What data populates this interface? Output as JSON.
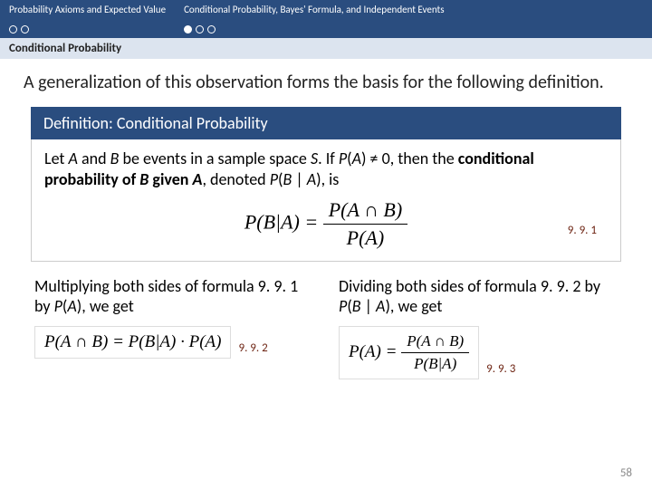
{
  "header": {
    "section1": "Probability Axioms and Expected Value",
    "section2": "Conditional Probability, Bayes' Formula,  and Independent Events"
  },
  "subheader": "Conditional Probability",
  "intro": "A generalization of this observation forms the basis for the following definition.",
  "def_title": "Definition: Conditional Probability",
  "def_text_1": "Let ",
  "def_A": "A",
  "def_and": " and ",
  "def_B": "B",
  "def_text_2": " be events in a sample space ",
  "def_S": "S",
  "def_text_3": ". If ",
  "def_PA": "P",
  "def_text_4": "(",
  "def_A2": "A",
  "def_text_5": ") ≠ 0, then the ",
  "def_bold": "conditional probability of ",
  "def_B2": "B",
  "def_bold2": " given ",
  "def_A3": "A",
  "def_text_6": ", denoted  ",
  "def_PBA": "P",
  "def_text_7": "(",
  "def_B3": "B",
  "def_bar": " | ",
  "def_A4": "A",
  "def_text_8": "), is",
  "form1_lhs": "P(B|A) =",
  "form1_num": "P(A ∩ B)",
  "form1_den": "P(A)",
  "label1": "9. 9. 1",
  "col1_text_a": "Multiplying both sides of formula 9. 9. 1 by ",
  "col1_P": "P",
  "col1_paren1": "(",
  "col1_A": "A",
  "col1_paren2": "), we get",
  "form2": "P(A ∩ B) = P(B|A) · P(A)",
  "label2": "9. 9. 2",
  "col2_text_a": "Dividing both sides of formula 9. 9. 2 by ",
  "col2_P": "P",
  "col2_paren1": "(",
  "col2_B": "B",
  "col2_bar": " | ",
  "col2_A": "A",
  "col2_paren2": "), we get",
  "form3_lhs": "P(A) =",
  "form3_num": "P(A ∩ B)",
  "form3_den": "P(B|A)",
  "label3": "9. 9. 3",
  "pagenum": "58"
}
